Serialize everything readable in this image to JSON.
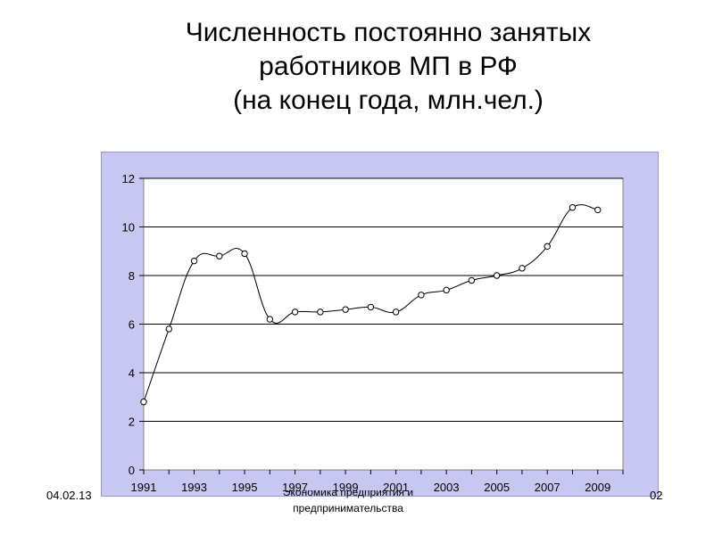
{
  "slide": {
    "title_lines": [
      "Численность постоянно занятых",
      "работников МП в РФ",
      "(на конец года, млн.чел.)"
    ],
    "footer": {
      "date": "04.02.13",
      "center_line1": "Экономика предприятия и",
      "center_line2": "предпринимательства",
      "page": "02"
    }
  },
  "chart_data": {
    "type": "line",
    "title": "",
    "xlabel": "",
    "ylabel": "",
    "x": [
      1991,
      1992,
      1993,
      1994,
      1995,
      1996,
      1997,
      1998,
      1999,
      2000,
      2001,
      2002,
      2003,
      2004,
      2005,
      2006,
      2007,
      2008,
      2009
    ],
    "series": [
      {
        "values": [
          2.8,
          5.8,
          8.6,
          8.8,
          8.9,
          6.2,
          6.5,
          6.5,
          6.6,
          6.7,
          6.5,
          7.2,
          7.4,
          7.8,
          8.0,
          8.3,
          9.2,
          10.8,
          10.7
        ]
      }
    ],
    "xticks": [
      "1991",
      "1993",
      "1995",
      "1997",
      "1999",
      "2001",
      "2003",
      "2005",
      "2007",
      "2009"
    ],
    "xtick_values": [
      1991,
      1993,
      1995,
      1997,
      1999,
      2001,
      2003,
      2005,
      2007,
      2009
    ],
    "yticks": [
      "0",
      "2",
      "4",
      "6",
      "8",
      "10",
      "12"
    ],
    "ytick_values": [
      0,
      2,
      4,
      6,
      8,
      10,
      12
    ],
    "ylim": [
      0,
      12
    ],
    "xlim": [
      1991,
      2010
    ],
    "grid": "horizontal",
    "legend": "none",
    "colors": {
      "frame_background": "#c7c7f2",
      "plot_background": "#ffffff",
      "line": "#000000",
      "marker_fill": "#ffffff",
      "gridline": "#000000"
    }
  }
}
